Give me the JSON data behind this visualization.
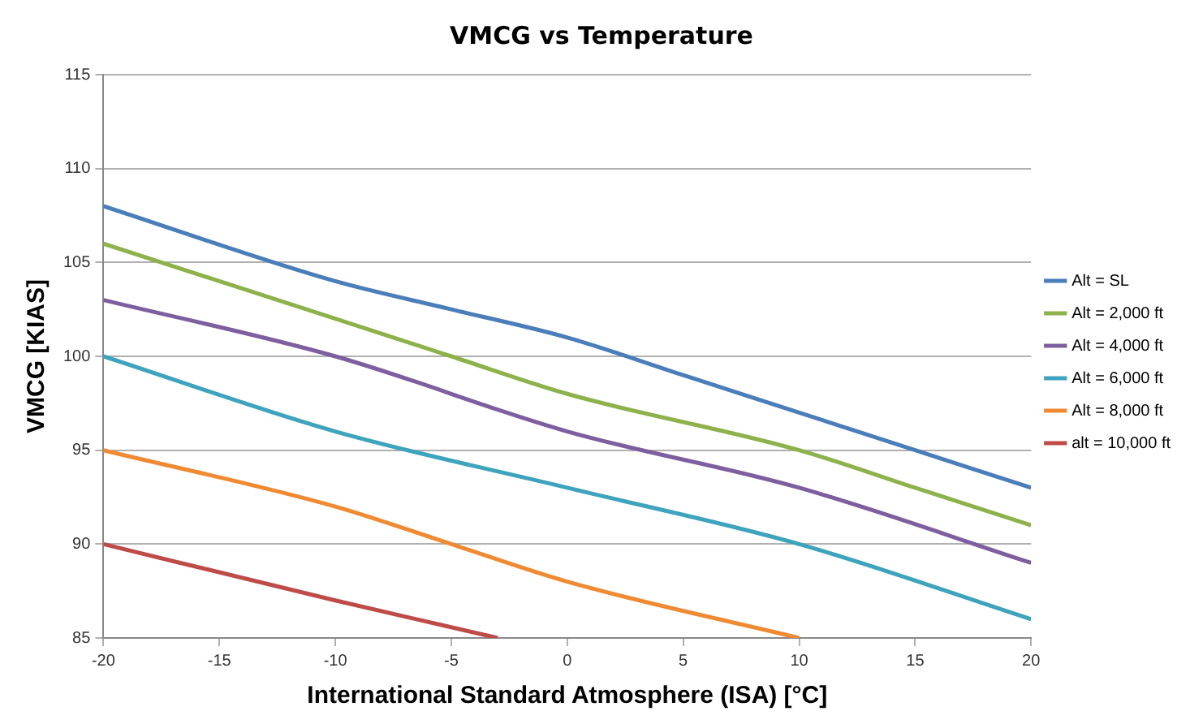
{
  "chart_data": {
    "type": "line",
    "title": "VMCG vs Temperature",
    "xlabel": "International Standard Atmosphere (ISA) [°C]",
    "ylabel": "VMCG [KIAS]",
    "xlim": [
      -20,
      20
    ],
    "xticks": [
      -20,
      -15,
      -10,
      -5,
      0,
      5,
      10,
      15,
      20
    ],
    "ylim": [
      85,
      115
    ],
    "yticks": [
      85,
      90,
      95,
      100,
      105,
      110,
      115
    ],
    "grid": "y",
    "legend": "right",
    "marker": "none",
    "line_style": "solid",
    "series": [
      {
        "name": "Alt = SL",
        "color": "#4a7ebb",
        "x": [
          -20,
          -10,
          -5,
          0,
          5,
          10,
          15,
          20
        ],
        "values": [
          108,
          104,
          102.5,
          101,
          99,
          97,
          95,
          93
        ]
      },
      {
        "name": "Alt = 2,000 ft",
        "color": "#8db24b",
        "x": [
          -20,
          -10,
          -5,
          0,
          10,
          15,
          20
        ],
        "values": [
          106,
          102,
          100,
          98,
          95,
          93,
          91
        ]
      },
      {
        "name": "Alt = 4,000 ft",
        "color": "#7d5fa0",
        "x": [
          -20,
          -10,
          0,
          10,
          20
        ],
        "values": [
          103,
          100,
          96,
          93,
          89
        ]
      },
      {
        "name": "Alt = 6,000 ft",
        "color": "#3ea3bd",
        "x": [
          -20,
          -10,
          0,
          10,
          20
        ],
        "values": [
          100,
          96,
          93,
          90,
          86
        ]
      },
      {
        "name": "Alt = 8,000 ft",
        "color": "#f08a32",
        "x": [
          -20,
          -10,
          -5,
          0,
          10
        ],
        "values": [
          95,
          92,
          90,
          88,
          85
        ]
      },
      {
        "name": "alt = 10,000 ft",
        "color": "#be4b48",
        "x": [
          -20,
          -10,
          -3
        ],
        "values": [
          90,
          87,
          85
        ]
      }
    ]
  }
}
